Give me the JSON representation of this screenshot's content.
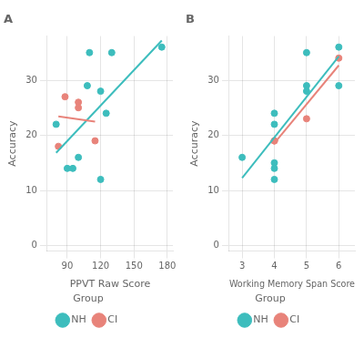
{
  "chart_data": [
    {
      "type": "scatter",
      "title": "A",
      "x_label": "PPVT Raw Score",
      "y_label": "Accuracy",
      "xlim": [
        72,
        185
      ],
      "xticks": [
        90,
        120,
        150,
        180
      ],
      "ylim": [
        -1,
        38
      ],
      "yticks": [
        0,
        10,
        20,
        30
      ],
      "grid": true,
      "legend": "bottom",
      "legend_title": "Group",
      "series": [
        {
          "name": "CI",
          "color": "#E8837A",
          "x": [
            82,
            88,
            100,
            100,
            115
          ],
          "values": [
            18,
            27,
            26,
            25,
            19
          ],
          "trend_x": [
            82,
            115
          ],
          "trend_values": [
            23.416667,
            22.5
          ]
        },
        {
          "name": "NH",
          "color": "#3DBDBD",
          "x": [
            80,
            90,
            95,
            100,
            108,
            110,
            120,
            120,
            125,
            130,
            175
          ],
          "values": [
            22,
            14,
            14,
            16,
            29,
            35,
            28,
            12,
            24,
            35,
            36
          ],
          "trend_x": [
            80,
            175
          ],
          "trend_values": [
            16.82001,
            37.19023
          ]
        }
      ]
    },
    {
      "type": "scatter",
      "title": "B",
      "x_label": "Working Memory Span Score",
      "y_label": "Accuracy",
      "xlim": [
        2.6,
        6.5
      ],
      "xticks": [
        3,
        4,
        5,
        6
      ],
      "ylim": [
        -1,
        38
      ],
      "yticks": [
        0,
        10,
        20,
        30
      ],
      "grid": true,
      "legend": "bottom",
      "legend_title": "Group",
      "series": [
        {
          "name": "CI",
          "color": "#E8837A",
          "x": [
            4,
            4,
            4,
            5,
            6
          ],
          "values": [
            19,
            19,
            19,
            23,
            34
          ],
          "trend_x": [
            4,
            6
          ],
          "trend_values": [
            18.5625,
            32.6875
          ]
        },
        {
          "name": "NH",
          "color": "#3DBDBD",
          "x": [
            3,
            4,
            4,
            4,
            4,
            4,
            5,
            5,
            5,
            6,
            6
          ],
          "values": [
            16,
            12,
            14,
            15,
            22,
            24,
            28,
            29,
            35,
            29,
            36
          ],
          "trend_x": [
            3,
            6
          ],
          "trend_values": [
            12.270833,
            34.333333
          ]
        }
      ]
    }
  ]
}
